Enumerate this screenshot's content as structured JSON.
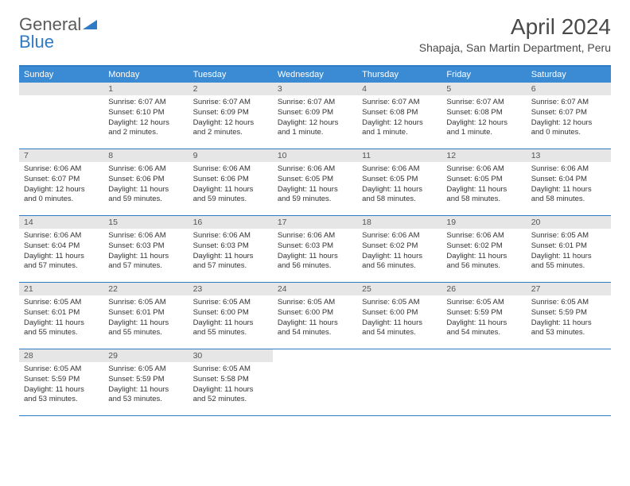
{
  "brand": {
    "part1": "General",
    "part2": "Blue"
  },
  "title": "April 2024",
  "location": "Shapaja, San Martin Department, Peru",
  "colors": {
    "accent": "#2f7bc4",
    "header_bg": "#3b8bd4",
    "daynum_bg": "#e6e6e6"
  },
  "weekdays": [
    "Sunday",
    "Monday",
    "Tuesday",
    "Wednesday",
    "Thursday",
    "Friday",
    "Saturday"
  ],
  "start_offset": 1,
  "days": [
    {
      "n": "1",
      "sr": "6:07 AM",
      "ss": "6:10 PM",
      "dl": "12 hours and 2 minutes."
    },
    {
      "n": "2",
      "sr": "6:07 AM",
      "ss": "6:09 PM",
      "dl": "12 hours and 2 minutes."
    },
    {
      "n": "3",
      "sr": "6:07 AM",
      "ss": "6:09 PM",
      "dl": "12 hours and 1 minute."
    },
    {
      "n": "4",
      "sr": "6:07 AM",
      "ss": "6:08 PM",
      "dl": "12 hours and 1 minute."
    },
    {
      "n": "5",
      "sr": "6:07 AM",
      "ss": "6:08 PM",
      "dl": "12 hours and 1 minute."
    },
    {
      "n": "6",
      "sr": "6:07 AM",
      "ss": "6:07 PM",
      "dl": "12 hours and 0 minutes."
    },
    {
      "n": "7",
      "sr": "6:06 AM",
      "ss": "6:07 PM",
      "dl": "12 hours and 0 minutes."
    },
    {
      "n": "8",
      "sr": "6:06 AM",
      "ss": "6:06 PM",
      "dl": "11 hours and 59 minutes."
    },
    {
      "n": "9",
      "sr": "6:06 AM",
      "ss": "6:06 PM",
      "dl": "11 hours and 59 minutes."
    },
    {
      "n": "10",
      "sr": "6:06 AM",
      "ss": "6:05 PM",
      "dl": "11 hours and 59 minutes."
    },
    {
      "n": "11",
      "sr": "6:06 AM",
      "ss": "6:05 PM",
      "dl": "11 hours and 58 minutes."
    },
    {
      "n": "12",
      "sr": "6:06 AM",
      "ss": "6:05 PM",
      "dl": "11 hours and 58 minutes."
    },
    {
      "n": "13",
      "sr": "6:06 AM",
      "ss": "6:04 PM",
      "dl": "11 hours and 58 minutes."
    },
    {
      "n": "14",
      "sr": "6:06 AM",
      "ss": "6:04 PM",
      "dl": "11 hours and 57 minutes."
    },
    {
      "n": "15",
      "sr": "6:06 AM",
      "ss": "6:03 PM",
      "dl": "11 hours and 57 minutes."
    },
    {
      "n": "16",
      "sr": "6:06 AM",
      "ss": "6:03 PM",
      "dl": "11 hours and 57 minutes."
    },
    {
      "n": "17",
      "sr": "6:06 AM",
      "ss": "6:03 PM",
      "dl": "11 hours and 56 minutes."
    },
    {
      "n": "18",
      "sr": "6:06 AM",
      "ss": "6:02 PM",
      "dl": "11 hours and 56 minutes."
    },
    {
      "n": "19",
      "sr": "6:06 AM",
      "ss": "6:02 PM",
      "dl": "11 hours and 56 minutes."
    },
    {
      "n": "20",
      "sr": "6:05 AM",
      "ss": "6:01 PM",
      "dl": "11 hours and 55 minutes."
    },
    {
      "n": "21",
      "sr": "6:05 AM",
      "ss": "6:01 PM",
      "dl": "11 hours and 55 minutes."
    },
    {
      "n": "22",
      "sr": "6:05 AM",
      "ss": "6:01 PM",
      "dl": "11 hours and 55 minutes."
    },
    {
      "n": "23",
      "sr": "6:05 AM",
      "ss": "6:00 PM",
      "dl": "11 hours and 55 minutes."
    },
    {
      "n": "24",
      "sr": "6:05 AM",
      "ss": "6:00 PM",
      "dl": "11 hours and 54 minutes."
    },
    {
      "n": "25",
      "sr": "6:05 AM",
      "ss": "6:00 PM",
      "dl": "11 hours and 54 minutes."
    },
    {
      "n": "26",
      "sr": "6:05 AM",
      "ss": "5:59 PM",
      "dl": "11 hours and 54 minutes."
    },
    {
      "n": "27",
      "sr": "6:05 AM",
      "ss": "5:59 PM",
      "dl": "11 hours and 53 minutes."
    },
    {
      "n": "28",
      "sr": "6:05 AM",
      "ss": "5:59 PM",
      "dl": "11 hours and 53 minutes."
    },
    {
      "n": "29",
      "sr": "6:05 AM",
      "ss": "5:59 PM",
      "dl": "11 hours and 53 minutes."
    },
    {
      "n": "30",
      "sr": "6:05 AM",
      "ss": "5:58 PM",
      "dl": "11 hours and 52 minutes."
    }
  ],
  "labels": {
    "sunrise": "Sunrise:",
    "sunset": "Sunset:",
    "daylight": "Daylight:"
  }
}
